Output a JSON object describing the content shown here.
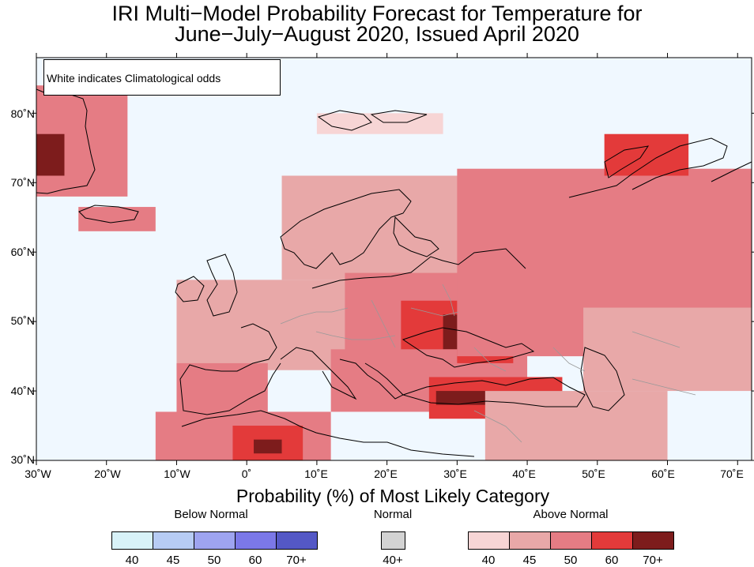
{
  "title": {
    "line1": "IRI Multi−Model Probability Forecast for Temperature for",
    "line2": "June−July−August 2020, Issued April 2020"
  },
  "note": "White indicates Climatological odds",
  "axes": {
    "lat_labels": [
      "80˚N",
      "70˚N",
      "60˚N",
      "50˚N",
      "40˚N",
      "30˚N"
    ],
    "lon_labels": [
      "30˚W",
      "20˚W",
      "10˚W",
      "0˚",
      "10˚E",
      "20˚E",
      "30˚E",
      "40˚E",
      "50˚E",
      "60˚E",
      "70˚E"
    ]
  },
  "legend": {
    "caption": "Probability (%) of Most Likely Category",
    "below": {
      "label": "Below Normal",
      "ticks": [
        "40",
        "45",
        "50",
        "60",
        "70+"
      ],
      "colors": [
        "#d8f2f8",
        "#b7ccf4",
        "#9ea4f0",
        "#7b78e8",
        "#5458c6"
      ]
    },
    "normal": {
      "label": "Normal",
      "ticks": [
        "40+"
      ],
      "colors": [
        "#d3d3d3"
      ]
    },
    "above": {
      "label": "Above Normal",
      "ticks": [
        "40",
        "45",
        "50",
        "60",
        "70+"
      ],
      "colors": [
        "#f7d5d5",
        "#e8a8a8",
        "#e57c84",
        "#e33a3a",
        "#7d1c1c"
      ]
    }
  },
  "colors": {
    "ocean": "#f0f8ff",
    "land": "#ffffff"
  },
  "map_data": {
    "projection": "equirectangular",
    "extent": {
      "lon": [
        -30,
        72
      ],
      "lat": [
        30,
        88
      ]
    },
    "regions": [
      {
        "name": "greenland-south",
        "lon": [
          -30,
          -17
        ],
        "lat": [
          68,
          84
        ],
        "level": 3
      },
      {
        "name": "greenland-core",
        "lon": [
          -30,
          -26
        ],
        "lat": [
          71,
          77
        ],
        "level": 5
      },
      {
        "name": "iceland",
        "lon": [
          -24,
          -13
        ],
        "lat": [
          63,
          66.5
        ],
        "level": 3
      },
      {
        "name": "svalbard",
        "lon": [
          10,
          28
        ],
        "lat": [
          77,
          80
        ],
        "level": 1
      },
      {
        "name": "scandinavia",
        "lon": [
          5,
          31
        ],
        "lat": [
          56,
          71
        ],
        "level": 2
      },
      {
        "name": "western-europe",
        "lon": [
          -10,
          20
        ],
        "lat": [
          43,
          56
        ],
        "level": 2
      },
      {
        "name": "iberia",
        "lon": [
          -10,
          3
        ],
        "lat": [
          36,
          44
        ],
        "level": 3
      },
      {
        "name": "north-africa",
        "lon": [
          -13,
          12
        ],
        "lat": [
          30,
          37
        ],
        "level": 3
      },
      {
        "name": "sahara-core",
        "lon": [
          -2,
          8
        ],
        "lat": [
          30,
          35
        ],
        "level": 4
      },
      {
        "name": "sahara-peak",
        "lon": [
          1,
          5
        ],
        "lat": [
          31,
          33
        ],
        "level": 5
      },
      {
        "name": "central-east-europe",
        "lon": [
          14,
          40
        ],
        "lat": [
          42,
          57
        ],
        "level": 3
      },
      {
        "name": "ukraine",
        "lon": [
          22,
          38
        ],
        "lat": [
          44,
          53
        ],
        "level": 4
      },
      {
        "name": "ukraine-peak",
        "lon": [
          28,
          34
        ],
        "lat": [
          46,
          51
        ],
        "level": 5
      },
      {
        "name": "balkans",
        "lon": [
          12,
          30
        ],
        "lat": [
          37,
          46
        ],
        "level": 3
      },
      {
        "name": "turkey",
        "lon": [
          26,
          45
        ],
        "lat": [
          36,
          42
        ],
        "level": 4
      },
      {
        "name": "turkey-peak",
        "lon": [
          27,
          45
        ],
        "lat": [
          38,
          40
        ],
        "level": 5
      },
      {
        "name": "russia",
        "lon": [
          30,
          72
        ],
        "lat": [
          45,
          72
        ],
        "level": 3
      },
      {
        "name": "russia-north",
        "lon": [
          40,
          72
        ],
        "lat": [
          63,
          70
        ],
        "level": 3
      },
      {
        "name": "novaya-zemlya",
        "lon": [
          51,
          63
        ],
        "lat": [
          71,
          77
        ],
        "level": 4
      },
      {
        "name": "kazakhstan",
        "lon": [
          48,
          72
        ],
        "lat": [
          40,
          52
        ],
        "level": 2
      },
      {
        "name": "middle-east",
        "lon": [
          34,
          60
        ],
        "lat": [
          30,
          40
        ],
        "level": 2
      }
    ]
  }
}
